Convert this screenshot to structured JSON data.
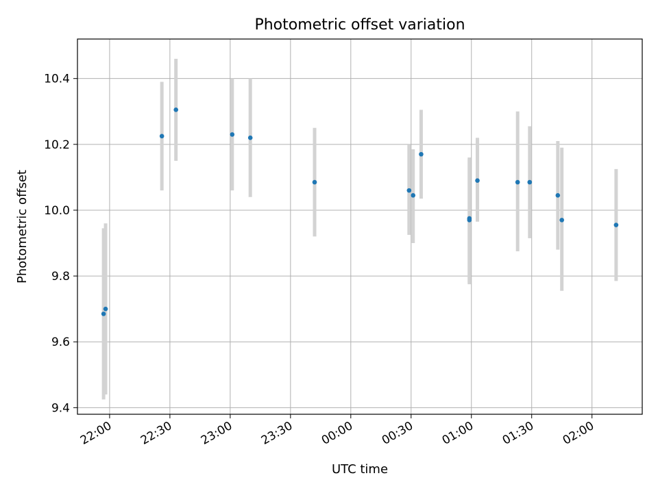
{
  "chart_data": {
    "type": "scatter",
    "title": "Photometric offset variation",
    "xlabel": "UTC time",
    "ylabel": "Photometric offset",
    "x_tick_labels": [
      "22:00",
      "22:30",
      "23:00",
      "23:30",
      "00:00",
      "00:30",
      "01:00",
      "01:30",
      "02:00"
    ],
    "y_tick_labels": [
      "9.4",
      "9.6",
      "9.8",
      "10.0",
      "10.2",
      "10.4"
    ],
    "y_ticks": [
      9.4,
      9.6,
      9.8,
      10.0,
      10.2,
      10.4
    ],
    "x_ticks": [
      "21:60",
      "22:30",
      "23:00",
      "23:30",
      "24:00",
      "24:30",
      "25:00",
      "25:30",
      "26:00"
    ],
    "xlim": [
      "21:44",
      "26:25"
    ],
    "ylim": [
      9.38,
      10.52
    ],
    "grid": true,
    "point_color": "#1f77b4",
    "errorbar_color": "#d3d3d3",
    "points": [
      {
        "x": "21:57",
        "y": 9.685,
        "ylow": 9.425,
        "yhigh": 9.945
      },
      {
        "x": "21:58",
        "y": 9.7,
        "ylow": 9.44,
        "yhigh": 9.96
      },
      {
        "x": "22:26",
        "y": 10.225,
        "ylow": 10.06,
        "yhigh": 10.39
      },
      {
        "x": "22:33",
        "y": 10.305,
        "ylow": 10.15,
        "yhigh": 10.46
      },
      {
        "x": "23:01",
        "y": 10.23,
        "ylow": 10.06,
        "yhigh": 10.4
      },
      {
        "x": "23:10",
        "y": 10.22,
        "ylow": 10.04,
        "yhigh": 10.4
      },
      {
        "x": "23:42",
        "y": 10.085,
        "ylow": 9.92,
        "yhigh": 10.25
      },
      {
        "x": "24:29",
        "y": 10.06,
        "ylow": 9.925,
        "yhigh": 10.2
      },
      {
        "x": "24:31",
        "y": 10.045,
        "ylow": 9.9,
        "yhigh": 10.185
      },
      {
        "x": "24:35",
        "y": 10.17,
        "ylow": 10.035,
        "yhigh": 10.305
      },
      {
        "x": "24:59",
        "y": 9.975,
        "ylow": 9.78,
        "yhigh": 10.155
      },
      {
        "x": "24:59",
        "y": 9.97,
        "ylow": 9.775,
        "yhigh": 10.16
      },
      {
        "x": "25:03",
        "y": 10.09,
        "ylow": 9.965,
        "yhigh": 10.22
      },
      {
        "x": "25:23",
        "y": 10.085,
        "ylow": 9.875,
        "yhigh": 10.3
      },
      {
        "x": "25:29",
        "y": 10.085,
        "ylow": 9.915,
        "yhigh": 10.255
      },
      {
        "x": "25:43",
        "y": 10.045,
        "ylow": 9.88,
        "yhigh": 10.21
      },
      {
        "x": "25:45",
        "y": 9.97,
        "ylow": 9.755,
        "yhigh": 10.19
      },
      {
        "x": "26:12",
        "y": 9.955,
        "ylow": 9.785,
        "yhigh": 10.125
      }
    ]
  }
}
